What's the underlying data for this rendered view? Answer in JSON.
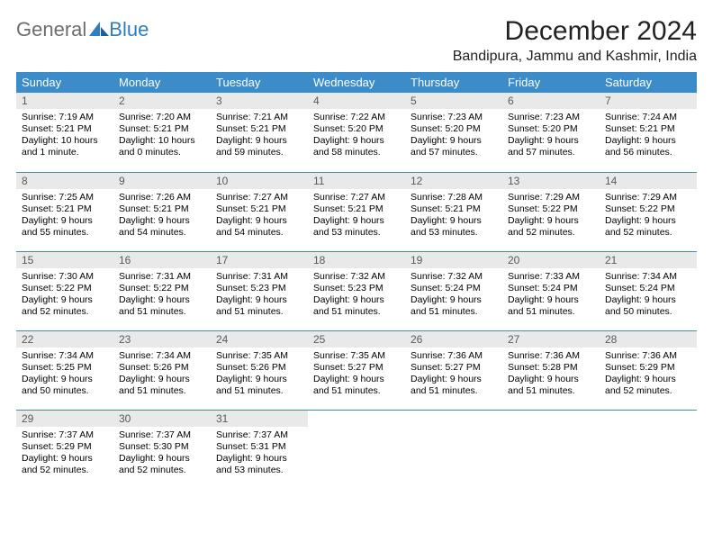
{
  "logo": {
    "text1": "General",
    "text2": "Blue"
  },
  "title": "December 2024",
  "location": "Bandipura, Jammu and Kashmir, India",
  "colors": {
    "header_bg": "#3c8cc9",
    "header_text": "#ffffff",
    "daynum_bg": "#e9e9e9",
    "daynum_text": "#5a5a5a",
    "row_border": "#3c8cc9",
    "logo_gray": "#6d6d6d",
    "logo_blue": "#2f7dc0",
    "page_bg": "#ffffff"
  },
  "weekdays": [
    "Sunday",
    "Monday",
    "Tuesday",
    "Wednesday",
    "Thursday",
    "Friday",
    "Saturday"
  ],
  "weeks": [
    [
      {
        "n": "1",
        "sr": "7:19 AM",
        "ss": "5:21 PM",
        "dl": "10 hours and 1 minute."
      },
      {
        "n": "2",
        "sr": "7:20 AM",
        "ss": "5:21 PM",
        "dl": "10 hours and 0 minutes."
      },
      {
        "n": "3",
        "sr": "7:21 AM",
        "ss": "5:21 PM",
        "dl": "9 hours and 59 minutes."
      },
      {
        "n": "4",
        "sr": "7:22 AM",
        "ss": "5:20 PM",
        "dl": "9 hours and 58 minutes."
      },
      {
        "n": "5",
        "sr": "7:23 AM",
        "ss": "5:20 PM",
        "dl": "9 hours and 57 minutes."
      },
      {
        "n": "6",
        "sr": "7:23 AM",
        "ss": "5:20 PM",
        "dl": "9 hours and 57 minutes."
      },
      {
        "n": "7",
        "sr": "7:24 AM",
        "ss": "5:21 PM",
        "dl": "9 hours and 56 minutes."
      }
    ],
    [
      {
        "n": "8",
        "sr": "7:25 AM",
        "ss": "5:21 PM",
        "dl": "9 hours and 55 minutes."
      },
      {
        "n": "9",
        "sr": "7:26 AM",
        "ss": "5:21 PM",
        "dl": "9 hours and 54 minutes."
      },
      {
        "n": "10",
        "sr": "7:27 AM",
        "ss": "5:21 PM",
        "dl": "9 hours and 54 minutes."
      },
      {
        "n": "11",
        "sr": "7:27 AM",
        "ss": "5:21 PM",
        "dl": "9 hours and 53 minutes."
      },
      {
        "n": "12",
        "sr": "7:28 AM",
        "ss": "5:21 PM",
        "dl": "9 hours and 53 minutes."
      },
      {
        "n": "13",
        "sr": "7:29 AM",
        "ss": "5:22 PM",
        "dl": "9 hours and 52 minutes."
      },
      {
        "n": "14",
        "sr": "7:29 AM",
        "ss": "5:22 PM",
        "dl": "9 hours and 52 minutes."
      }
    ],
    [
      {
        "n": "15",
        "sr": "7:30 AM",
        "ss": "5:22 PM",
        "dl": "9 hours and 52 minutes."
      },
      {
        "n": "16",
        "sr": "7:31 AM",
        "ss": "5:22 PM",
        "dl": "9 hours and 51 minutes."
      },
      {
        "n": "17",
        "sr": "7:31 AM",
        "ss": "5:23 PM",
        "dl": "9 hours and 51 minutes."
      },
      {
        "n": "18",
        "sr": "7:32 AM",
        "ss": "5:23 PM",
        "dl": "9 hours and 51 minutes."
      },
      {
        "n": "19",
        "sr": "7:32 AM",
        "ss": "5:24 PM",
        "dl": "9 hours and 51 minutes."
      },
      {
        "n": "20",
        "sr": "7:33 AM",
        "ss": "5:24 PM",
        "dl": "9 hours and 51 minutes."
      },
      {
        "n": "21",
        "sr": "7:34 AM",
        "ss": "5:24 PM",
        "dl": "9 hours and 50 minutes."
      }
    ],
    [
      {
        "n": "22",
        "sr": "7:34 AM",
        "ss": "5:25 PM",
        "dl": "9 hours and 50 minutes."
      },
      {
        "n": "23",
        "sr": "7:34 AM",
        "ss": "5:26 PM",
        "dl": "9 hours and 51 minutes."
      },
      {
        "n": "24",
        "sr": "7:35 AM",
        "ss": "5:26 PM",
        "dl": "9 hours and 51 minutes."
      },
      {
        "n": "25",
        "sr": "7:35 AM",
        "ss": "5:27 PM",
        "dl": "9 hours and 51 minutes."
      },
      {
        "n": "26",
        "sr": "7:36 AM",
        "ss": "5:27 PM",
        "dl": "9 hours and 51 minutes."
      },
      {
        "n": "27",
        "sr": "7:36 AM",
        "ss": "5:28 PM",
        "dl": "9 hours and 51 minutes."
      },
      {
        "n": "28",
        "sr": "7:36 AM",
        "ss": "5:29 PM",
        "dl": "9 hours and 52 minutes."
      }
    ],
    [
      {
        "n": "29",
        "sr": "7:37 AM",
        "ss": "5:29 PM",
        "dl": "9 hours and 52 minutes."
      },
      {
        "n": "30",
        "sr": "7:37 AM",
        "ss": "5:30 PM",
        "dl": "9 hours and 52 minutes."
      },
      {
        "n": "31",
        "sr": "7:37 AM",
        "ss": "5:31 PM",
        "dl": "9 hours and 53 minutes."
      },
      null,
      null,
      null,
      null
    ]
  ],
  "labels": {
    "sunrise": "Sunrise:",
    "sunset": "Sunset:",
    "daylight": "Daylight:"
  }
}
